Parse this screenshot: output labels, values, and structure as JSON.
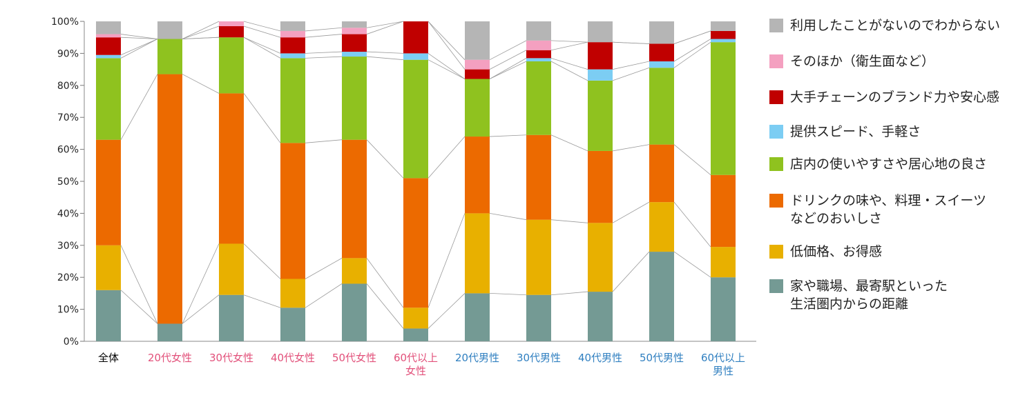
{
  "chart_data": {
    "type": "bar",
    "stacked": true,
    "percent": true,
    "categories": [
      "全体",
      "20代女性",
      "30代女性",
      "40代女性",
      "50代女性",
      "60代以上\n女性",
      "20代男性",
      "30代男性",
      "40代男性",
      "50代男性",
      "60代以上\n男性"
    ],
    "category_colors": [
      "#000000",
      "#e2507a",
      "#e2507a",
      "#e2507a",
      "#e2507a",
      "#e2507a",
      "#2f7fc0",
      "#2f7fc0",
      "#2f7fc0",
      "#2f7fc0",
      "#2f7fc0"
    ],
    "ylim": [
      0,
      100
    ],
    "yticks": [
      "0%",
      "10%",
      "20%",
      "30%",
      "40%",
      "50%",
      "60%",
      "70%",
      "80%",
      "90%",
      "100%"
    ],
    "series": [
      {
        "name": "家や職場、最寄駅といった\n生活圏内からの距離",
        "color": "#749a94",
        "values": [
          16,
          5.5,
          14.5,
          10.5,
          18,
          4,
          15,
          14.5,
          15.5,
          28,
          20
        ]
      },
      {
        "name": "低価格、お得感",
        "color": "#e8b000",
        "values": [
          14,
          0,
          16,
          9,
          8,
          6.5,
          25,
          23.5,
          21.5,
          15.5,
          9.5
        ]
      },
      {
        "name": "ドリンクの味や、料理・スイーツ\nなどのおいしさ",
        "color": "#ec6a00",
        "values": [
          33,
          78,
          47,
          42.5,
          37,
          40.5,
          24,
          26.5,
          22.5,
          18,
          22.5
        ]
      },
      {
        "name": "店内の使いやすさや居心地の良さ",
        "color": "#8fc21f",
        "values": [
          25.5,
          11,
          17.5,
          26.5,
          26,
          37,
          18,
          23,
          22,
          24,
          41.5
        ]
      },
      {
        "name": "提供スピード、手軽さ",
        "color": "#7ccdf3",
        "values": [
          1,
          0,
          0,
          1.5,
          1.5,
          2,
          0,
          1,
          3.5,
          2,
          1
        ]
      },
      {
        "name": "大手チェーンのブランド力や安心感",
        "color": "#c00000",
        "values": [
          5.5,
          0,
          3.5,
          5,
          5.5,
          10,
          3,
          2.5,
          8.5,
          5.5,
          2.5
        ]
      },
      {
        "name": "そのほか（衛生面など）",
        "color": "#f4a0c0",
        "values": [
          1,
          0,
          1.5,
          2,
          2,
          0,
          3,
          3,
          0,
          0,
          0
        ]
      },
      {
        "name": "利用したことがないのでわからない",
        "color": "#b5b5b5",
        "values": [
          4,
          5.5,
          1,
          3,
          2,
          0,
          12,
          6,
          7,
          7,
          3
        ]
      }
    ],
    "legend_order": [
      7,
      6,
      5,
      4,
      3,
      2,
      1,
      0
    ],
    "legend_position": "right"
  }
}
